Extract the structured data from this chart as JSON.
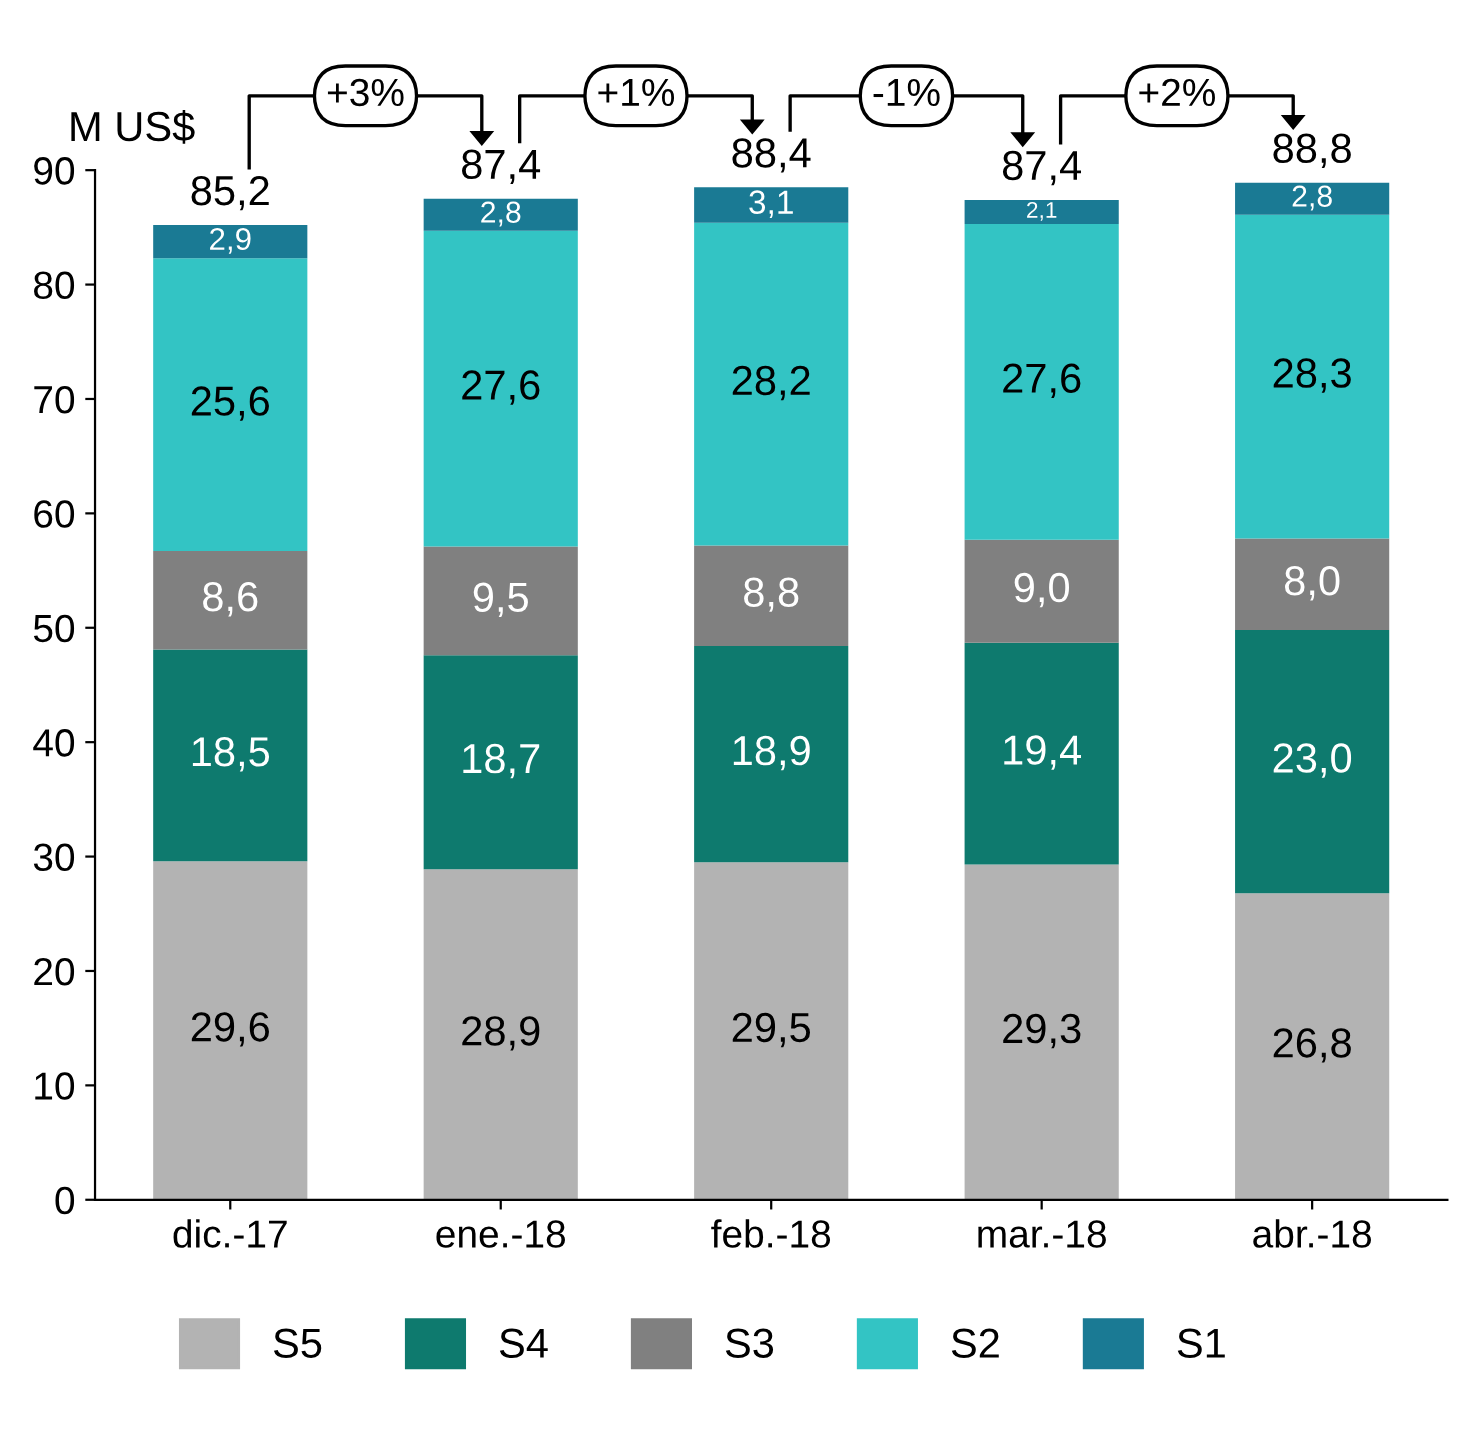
{
  "chart_data": {
    "type": "bar",
    "stacked": true,
    "ylabel": "M US$",
    "categories": [
      "dic.-17",
      "ene.-18",
      "feb.-18",
      "mar.-18",
      "abr.-18"
    ],
    "series": [
      {
        "name": "S5",
        "color": "#b3b3b3",
        "values": [
          29.6,
          28.9,
          29.5,
          29.3,
          26.8
        ],
        "value_labels": [
          "29,6",
          "28,9",
          "29,5",
          "29,3",
          "26,8"
        ]
      },
      {
        "name": "S4",
        "color": "#0e7a6e",
        "values": [
          18.5,
          18.7,
          18.9,
          19.4,
          23.0
        ],
        "value_labels": [
          "18,5",
          "18,7",
          "18,9",
          "19,4",
          "23,0"
        ]
      },
      {
        "name": "S3",
        "color": "#808080",
        "values": [
          8.6,
          9.5,
          8.8,
          9.0,
          8.0
        ],
        "value_labels": [
          "8,6",
          "9,5",
          "8,8",
          "9,0",
          "8,0"
        ]
      },
      {
        "name": "S2",
        "color": "#33c4c4",
        "values": [
          25.6,
          27.6,
          28.2,
          27.6,
          28.3
        ],
        "value_labels": [
          "25,6",
          "27,6",
          "28,2",
          "27,6",
          "28,3"
        ]
      },
      {
        "name": "S1",
        "color": "#1a7a94",
        "values": [
          2.9,
          2.8,
          3.1,
          2.1,
          2.8
        ],
        "value_labels": [
          "2,9",
          "2,8",
          "3,1",
          "2,1",
          "2,8"
        ]
      }
    ],
    "totals": [
      "85,2",
      "87,4",
      "88,4",
      "87,4",
      "88,8"
    ],
    "annotations": [
      "+3%",
      "+1%",
      "-1%",
      "+2%"
    ],
    "ylim": [
      0,
      90
    ],
    "yticks": [
      0,
      10,
      20,
      30,
      40,
      50,
      60,
      70,
      80,
      90
    ],
    "grid": false,
    "legend": "bottom"
  }
}
